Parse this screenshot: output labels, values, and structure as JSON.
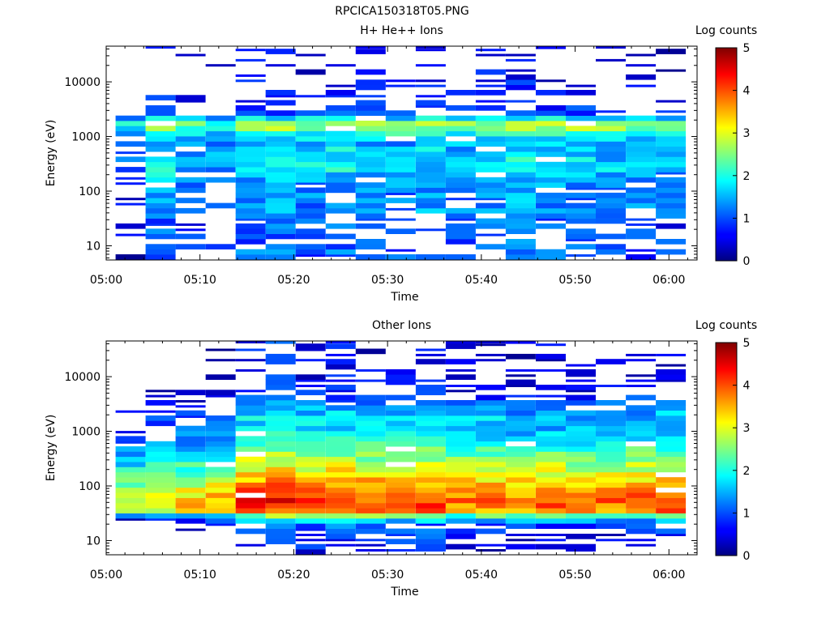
{
  "figure_title": "RPCICA150318T05.PNG",
  "chart_data": [
    {
      "type": "heatmap",
      "title": "H+ He++ Ions",
      "xlabel": "Time",
      "ylabel": "Energy (eV)",
      "x_ticks": [
        "05:00",
        "05:10",
        "05:20",
        "05:30",
        "05:40",
        "05:50",
        "06:00"
      ],
      "x_range": [
        "05:00",
        "06:03"
      ],
      "y_scale": "log",
      "y_ticks": [
        "10",
        "100",
        "1000",
        "10000"
      ],
      "y_range": [
        5.5,
        45000
      ],
      "colorbar": {
        "label": "Log counts",
        "range": [
          0,
          5
        ],
        "ticks": [
          "0",
          "1",
          "2",
          "3",
          "4",
          "5"
        ],
        "colormap": "jet"
      },
      "time_bins_start_min": [
        1,
        4.2,
        7.4,
        10.6,
        13.8,
        17,
        20.2,
        23.4,
        26.6,
        29.8,
        33,
        36.2,
        39.4,
        42.6,
        45.8,
        49,
        52.2,
        55.4,
        58.6
      ],
      "bin_width_min": 3.2,
      "profile": [
        {
          "logE": 1.45,
          "level": 0.9
        },
        {
          "logE": 1.62,
          "level": 1.3
        },
        {
          "logE": 1.8,
          "level": 1.1
        },
        {
          "logE": 2.0,
          "level": 1.2
        },
        {
          "logE": 2.2,
          "level": 1.3
        },
        {
          "logE": 2.45,
          "level": 1.7
        },
        {
          "logE": 2.7,
          "level": 1.6
        },
        {
          "logE": 2.9,
          "level": 1.4
        },
        {
          "logE": 3.05,
          "level": 1.9
        },
        {
          "logE": 3.2,
          "level": 2.9
        },
        {
          "logE": 3.3,
          "level": 2.0
        },
        {
          "logE": 3.45,
          "level": 0.7
        },
        {
          "logE": 3.7,
          "level": 0.5
        },
        {
          "logE": 4.0,
          "level": 0.4
        },
        {
          "logE": 4.35,
          "level": 0.3
        },
        {
          "logE": 4.6,
          "level": 0.2
        }
      ],
      "time_modifier": [
        -0.6,
        0.2,
        -0.2,
        -0.3,
        0.2,
        0.2,
        0.1,
        0.2,
        0.1,
        0.0,
        0.1,
        0.0,
        0.2,
        0.3,
        0.1,
        0.1,
        0.0,
        0.0,
        -0.1
      ],
      "sparsity": 0.45,
      "seed": 7
    },
    {
      "type": "heatmap",
      "title": "Other Ions",
      "xlabel": "Time",
      "ylabel": "Energy (eV)",
      "x_ticks": [
        "05:00",
        "05:10",
        "05:20",
        "05:30",
        "05:40",
        "05:50",
        "06:00"
      ],
      "x_range": [
        "05:00",
        "06:03"
      ],
      "y_scale": "log",
      "y_ticks": [
        "10",
        "100",
        "1000",
        "10000"
      ],
      "y_range": [
        5.5,
        45000
      ],
      "colorbar": {
        "label": "Log counts",
        "range": [
          0,
          5
        ],
        "ticks": [
          "0",
          "1",
          "2",
          "3",
          "4",
          "5"
        ],
        "colormap": "jet"
      },
      "time_bins_start_min": [
        1,
        4.2,
        7.4,
        10.6,
        13.8,
        17,
        20.2,
        23.4,
        26.6,
        29.8,
        33,
        36.2,
        39.4,
        42.6,
        45.8,
        49,
        52.2,
        55.4,
        58.6
      ],
      "bin_width_min": 3.2,
      "profile": [
        {
          "logE": 0.9,
          "level": 0.4
        },
        {
          "logE": 1.15,
          "level": 0.6
        },
        {
          "logE": 1.3,
          "level": 0.8
        },
        {
          "logE": 1.45,
          "level": 2.2
        },
        {
          "logE": 1.55,
          "level": 3.6
        },
        {
          "logE": 1.7,
          "level": 3.9
        },
        {
          "logE": 1.9,
          "level": 3.6
        },
        {
          "logE": 2.1,
          "level": 3.2
        },
        {
          "logE": 2.3,
          "level": 2.8
        },
        {
          "logE": 2.55,
          "level": 2.3
        },
        {
          "logE": 2.8,
          "level": 1.8
        },
        {
          "logE": 3.05,
          "level": 1.5
        },
        {
          "logE": 3.25,
          "level": 1.5
        },
        {
          "logE": 3.45,
          "level": 1.1
        },
        {
          "logE": 3.7,
          "level": 0.5
        },
        {
          "logE": 3.95,
          "level": 0.3
        }
      ],
      "time_modifier": [
        -0.9,
        -0.6,
        -0.5,
        -0.4,
        0.3,
        0.5,
        0.3,
        0.3,
        0.2,
        0.3,
        0.3,
        0.0,
        0.1,
        0.0,
        0.1,
        -0.1,
        0.0,
        0.1,
        0.2
      ],
      "sparsity": 0.3,
      "seed": 19
    }
  ]
}
